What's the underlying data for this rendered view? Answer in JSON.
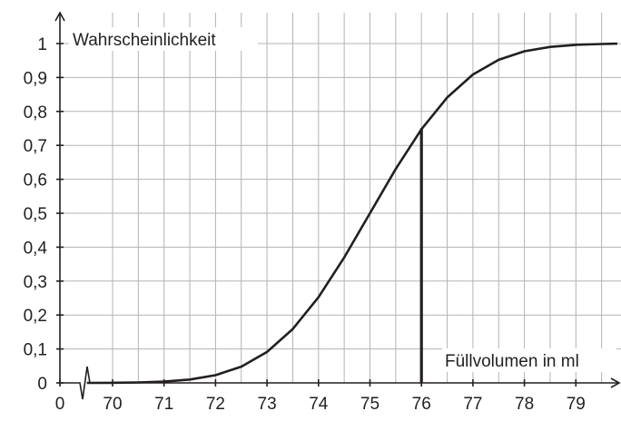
{
  "chart_data": {
    "type": "line",
    "ylabel": "Wahrscheinlichkeit",
    "xlabel": "Füllvolumen in ml",
    "x_ticks": [
      "0",
      "70",
      "71",
      "72",
      "73",
      "74",
      "75",
      "76",
      "77",
      "78",
      "79"
    ],
    "y_ticks": [
      "0",
      "0,1",
      "0,2",
      "0,3",
      "0,4",
      "0,5",
      "0,6",
      "0,7",
      "0,8",
      "0,9",
      "1"
    ],
    "xlim": [
      69.5,
      80
    ],
    "ylim": [
      0,
      1
    ],
    "axis_break": "x",
    "grid": true,
    "series": [
      {
        "x": [
          69.5,
          70,
          70.5,
          71,
          71.5,
          72,
          72.5,
          73,
          73.5,
          74,
          74.5,
          75,
          75.5,
          76,
          76.5,
          77,
          77.5,
          78,
          78.5,
          79,
          79.5,
          80
        ],
        "y": [
          0.0001,
          0.0004,
          0.0013,
          0.0038,
          0.0098,
          0.0228,
          0.0478,
          0.0912,
          0.1587,
          0.2525,
          0.3694,
          0.5,
          0.6306,
          0.7475,
          0.8413,
          0.9088,
          0.9522,
          0.9772,
          0.9902,
          0.9962,
          0.9987,
          0.9996
        ]
      }
    ],
    "annotations": [
      {
        "type": "vertical-line",
        "x": 76,
        "y": 0.75
      }
    ],
    "colors": {
      "curve": "#231f20",
      "grid": "#b3b3b3",
      "axis": "#231f20"
    }
  }
}
